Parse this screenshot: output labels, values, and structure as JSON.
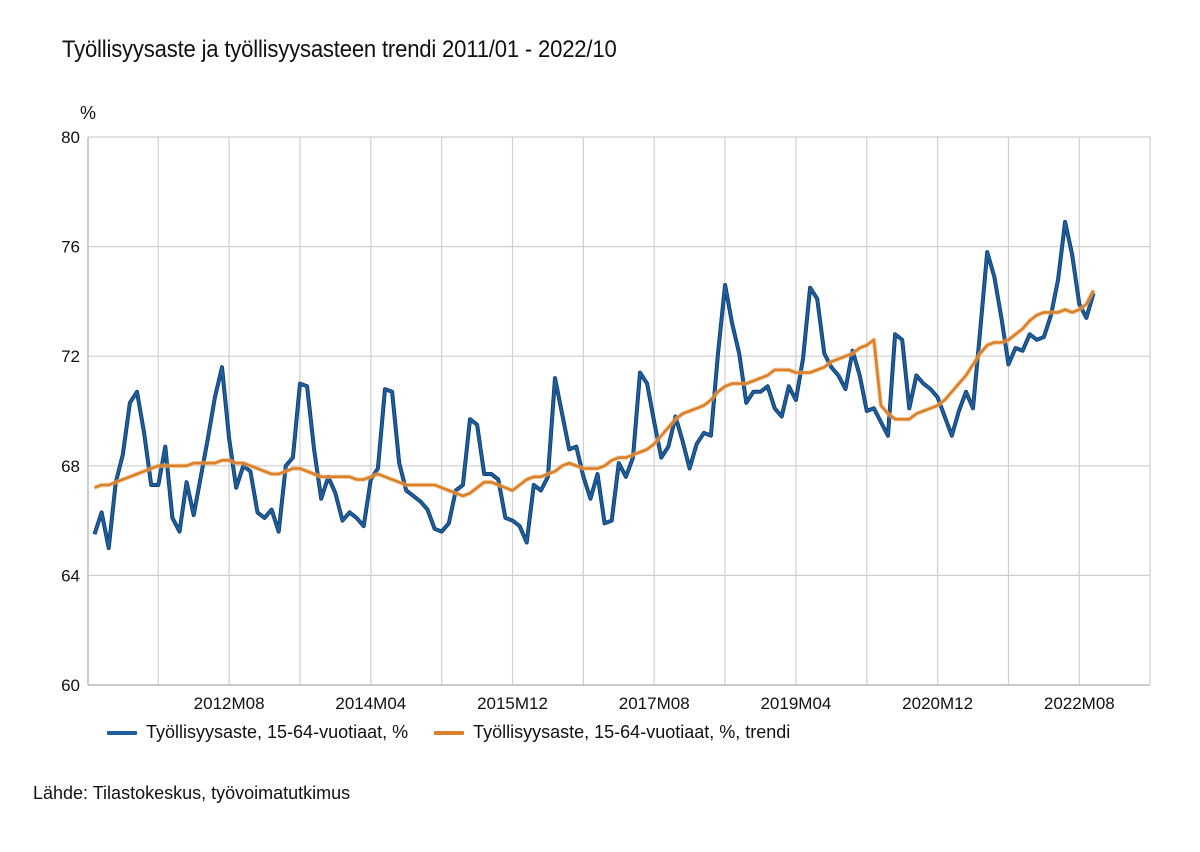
{
  "chart_data": {
    "type": "line",
    "title": "Työllisyysaste ja työllisyysasteen trendi 2011/01 - 2022/10",
    "ylabel": "%",
    "xlabel": "",
    "ylim": [
      60,
      80
    ],
    "yticks": [
      60,
      64,
      68,
      72,
      76,
      80
    ],
    "x_start": "2011M01",
    "x_end": "2022M10",
    "x_tick_labels": [
      "2012M08",
      "2014M04",
      "2015M12",
      "2017M08",
      "2019M04",
      "2020M12",
      "2022M08"
    ],
    "x_tick_indices": [
      19,
      39,
      59,
      79,
      99,
      119,
      139
    ],
    "grid": true,
    "legend_position": "bottom",
    "series": [
      {
        "name": "Työllisyysaste, 15-64-vuotiaat, %",
        "color": "#1f5f9e",
        "values": [
          65.5,
          66.3,
          65.0,
          67.4,
          68.4,
          70.3,
          70.7,
          69.2,
          67.3,
          67.3,
          68.7,
          66.1,
          65.6,
          67.4,
          66.2,
          67.6,
          69.0,
          70.5,
          71.6,
          69.0,
          67.2,
          68.0,
          67.8,
          66.3,
          66.1,
          66.4,
          65.6,
          68.0,
          68.3,
          71.0,
          70.9,
          68.6,
          66.8,
          67.6,
          67.0,
          66.0,
          66.3,
          66.1,
          65.8,
          67.5,
          67.9,
          70.8,
          70.7,
          68.1,
          67.1,
          66.9,
          66.7,
          66.4,
          65.7,
          65.6,
          65.9,
          67.1,
          67.3,
          69.7,
          69.5,
          67.7,
          67.7,
          67.5,
          66.1,
          66.0,
          65.8,
          65.2,
          67.3,
          67.1,
          67.6,
          71.2,
          69.9,
          68.6,
          68.7,
          67.6,
          66.8,
          67.7,
          65.9,
          66.0,
          68.1,
          67.6,
          68.3,
          71.4,
          71.0,
          69.6,
          68.3,
          68.7,
          69.8,
          68.9,
          67.9,
          68.8,
          69.2,
          69.1,
          72.1,
          74.6,
          73.2,
          72.1,
          70.3,
          70.7,
          70.7,
          70.9,
          70.1,
          69.8,
          70.9,
          70.4,
          71.9,
          74.5,
          74.1,
          72.1,
          71.6,
          71.3,
          70.8,
          72.2,
          71.3,
          70.0,
          70.1,
          69.6,
          69.1,
          72.8,
          72.6,
          70.1,
          71.3,
          71.0,
          70.8,
          70.5,
          69.8,
          69.1,
          70.0,
          70.7,
          70.1,
          72.9,
          75.8,
          74.9,
          73.4,
          71.7,
          72.3,
          72.2,
          72.8,
          72.6,
          72.7,
          73.5,
          74.8,
          76.9,
          75.7,
          73.9,
          73.4,
          74.3
        ]
      },
      {
        "name": "Työllisyysaste, 15-64-vuotiaat, %, trendi",
        "color": "#d9822b",
        "values": [
          67.2,
          67.3,
          67.3,
          67.4,
          67.5,
          67.6,
          67.7,
          67.8,
          67.9,
          68.0,
          68.0,
          68.0,
          68.0,
          68.0,
          68.1,
          68.1,
          68.1,
          68.1,
          68.2,
          68.2,
          68.1,
          68.1,
          68.0,
          67.9,
          67.8,
          67.7,
          67.7,
          67.8,
          67.9,
          67.9,
          67.8,
          67.7,
          67.6,
          67.6,
          67.6,
          67.6,
          67.6,
          67.5,
          67.5,
          67.6,
          67.7,
          67.6,
          67.5,
          67.4,
          67.3,
          67.3,
          67.3,
          67.3,
          67.3,
          67.2,
          67.1,
          67.0,
          66.9,
          67.0,
          67.2,
          67.4,
          67.4,
          67.3,
          67.2,
          67.1,
          67.3,
          67.5,
          67.6,
          67.6,
          67.7,
          67.8,
          68.0,
          68.1,
          68.0,
          67.9,
          67.9,
          67.9,
          68.0,
          68.2,
          68.3,
          68.3,
          68.4,
          68.5,
          68.6,
          68.8,
          69.1,
          69.4,
          69.7,
          69.9,
          70.0,
          70.1,
          70.2,
          70.4,
          70.7,
          70.9,
          71.0,
          71.0,
          71.0,
          71.1,
          71.2,
          71.3,
          71.5,
          71.5,
          71.5,
          71.4,
          71.4,
          71.4,
          71.5,
          71.6,
          71.8,
          71.9,
          72.0,
          72.1,
          72.3,
          72.4,
          72.6,
          70.2,
          69.9,
          69.7,
          69.7,
          69.7,
          69.9,
          70.0,
          70.1,
          70.2,
          70.4,
          70.7,
          71.0,
          71.3,
          71.7,
          72.1,
          72.4,
          72.5,
          72.5,
          72.6,
          72.8,
          73.0,
          73.3,
          73.5,
          73.6,
          73.6,
          73.6,
          73.7,
          73.6,
          73.7,
          73.9,
          74.4
        ]
      }
    ],
    "source": "Lähde: Tilastokeskus, työvoimatutkimus"
  }
}
